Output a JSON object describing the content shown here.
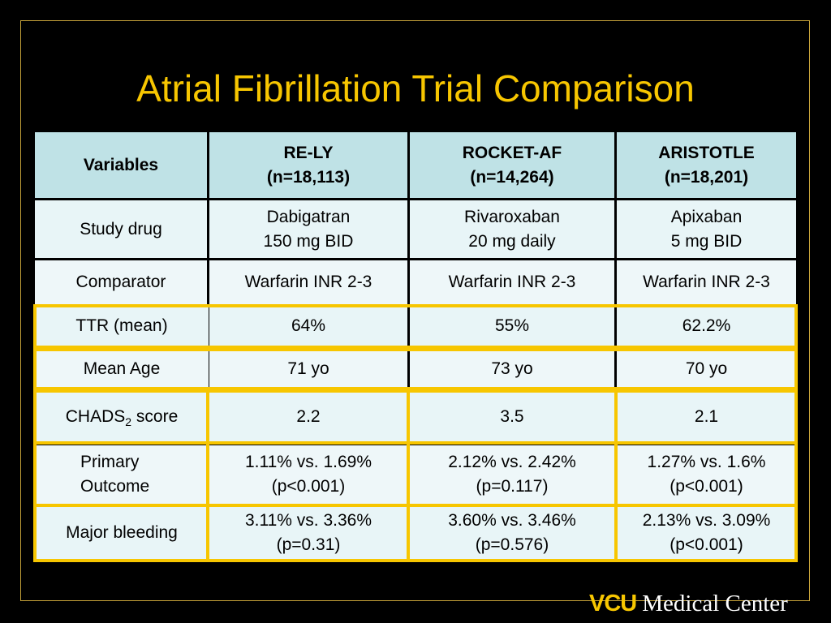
{
  "title": "Atrial Fibrillation Trial Comparison",
  "table": {
    "headers": [
      {
        "line1": "Variables",
        "line2": ""
      },
      {
        "line1": "RE-LY",
        "line2": "(n=18,113)"
      },
      {
        "line1": "ROCKET-AF",
        "line2": "(n=14,264)"
      },
      {
        "line1": "ARISTOTLE",
        "line2": "(n=18,201)"
      }
    ],
    "rows": [
      {
        "label": "Study drug",
        "cells": [
          [
            "Dabigatran",
            "150 mg BID"
          ],
          [
            "Rivaroxaban",
            "20 mg daily"
          ],
          [
            "Apixaban",
            "5 mg BID"
          ]
        ]
      },
      {
        "label": "Comparator",
        "cells": [
          [
            "Warfarin INR 2-3"
          ],
          [
            "Warfarin INR 2-3"
          ],
          [
            "Warfarin INR 2-3"
          ]
        ]
      },
      {
        "label": "TTR (mean)",
        "cells": [
          [
            "64%"
          ],
          [
            "55%"
          ],
          [
            "62.2%"
          ]
        ]
      },
      {
        "label": "Mean Age",
        "cells": [
          [
            "71 yo"
          ],
          [
            "73 yo"
          ],
          [
            "70 yo"
          ]
        ]
      },
      {
        "label_main": "CHADS",
        "label_sub": "2",
        "label_tail": " score",
        "cells": [
          [
            "2.2"
          ],
          [
            "3.5"
          ],
          [
            "2.1"
          ]
        ]
      },
      {
        "label_line1": "Primary",
        "label_line2": "Outcome",
        "cells": [
          [
            "1.11% vs. 1.69%",
            "(p<0.001)"
          ],
          [
            "2.12% vs. 2.42%",
            "(p=0.117)"
          ],
          [
            "1.27% vs. 1.6%",
            "(p<0.001)"
          ]
        ]
      },
      {
        "label": "Major bleeding",
        "cells": [
          [
            "3.11% vs. 3.36%",
            "(p=0.31)"
          ],
          [
            "3.60% vs. 3.46%",
            "(p=0.576)"
          ],
          [
            "2.13% vs. 3.09%",
            "(p<0.001)"
          ]
        ]
      }
    ]
  },
  "logo": {
    "brand": "VCU",
    "name": "Medical Center"
  },
  "colors": {
    "title": "#f7c600",
    "header_bg": "#bfe2e6",
    "cell_bg": "#e8f5f7",
    "highlight": "#f7c600",
    "background": "#000000"
  }
}
